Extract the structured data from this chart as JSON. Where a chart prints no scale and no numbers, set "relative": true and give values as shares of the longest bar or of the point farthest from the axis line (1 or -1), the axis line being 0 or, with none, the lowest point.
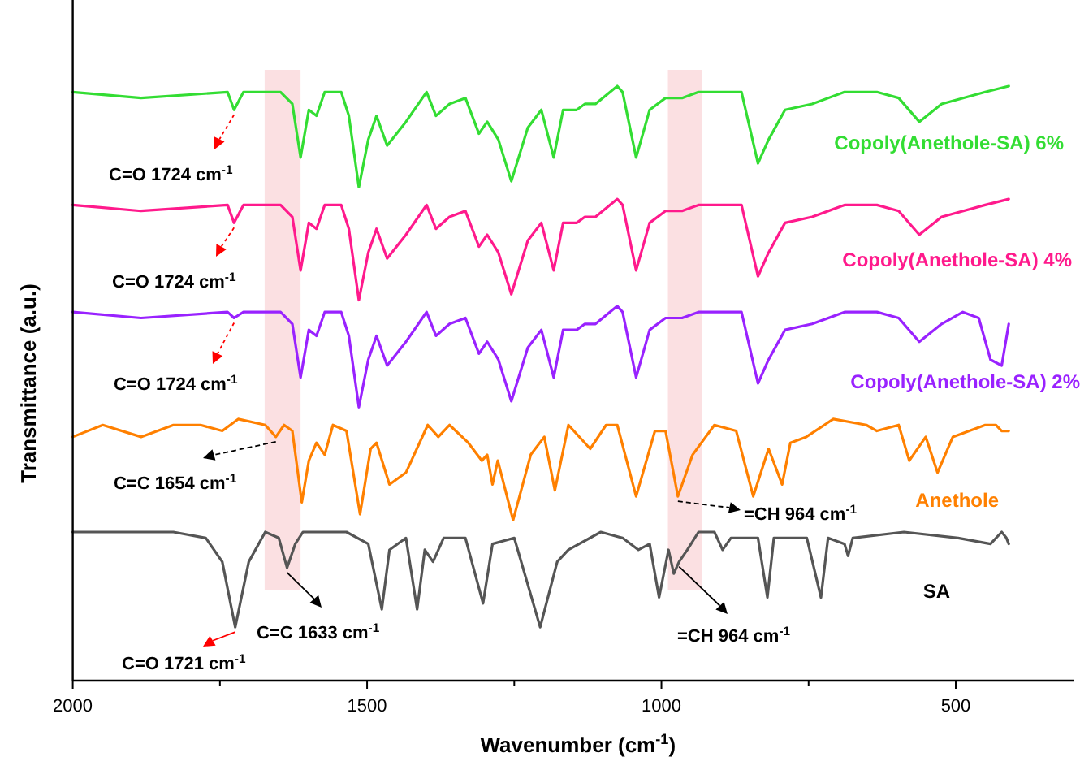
{
  "chart_data": {
    "type": "line",
    "relative": true,
    "xlabel": "Wavenumber (cm$^{-1}$)",
    "ylabel": "Transmittance (a.u.)",
    "xlim": [
      2000,
      300
    ],
    "xticks": [
      2000,
      {
        "value": 1750,
        "label": null
      },
      1500,
      {
        "value": 1250,
        "label": null
      },
      1000,
      {
        "value": 750,
        "label": null
      },
      500
    ],
    "bands": [
      {
        "axis": "x",
        "from": 1674,
        "to": 1613,
        "color": "#fadadd"
      },
      {
        "axis": "x",
        "from": 989,
        "to": 931,
        "color": "#fadadd"
      }
    ],
    "series": [
      {
        "name": "Copoly(Anethole-SA) 6%",
        "color": "#33dd33",
        "x": [
          2000,
          1884,
          1737,
          1726,
          1710,
          1647,
          1627,
          1613,
          1599,
          1586,
          1572,
          1544,
          1531,
          1514,
          1498,
          1484,
          1466,
          1434,
          1399,
          1383,
          1360,
          1333,
          1310,
          1296,
          1277,
          1255,
          1227,
          1204,
          1183,
          1167,
          1144,
          1130,
          1112,
          1075,
          1066,
          1043,
          1020,
          993,
          965,
          937,
          910,
          864,
          836,
          818,
          790,
          744,
          689,
          634,
          597,
          562,
          524,
          450,
          410
        ],
        "values": [
          0.99,
          0.98,
          0.99,
          0.96,
          0.99,
          0.99,
          0.97,
          0.88,
          0.96,
          0.95,
          0.99,
          0.99,
          0.95,
          0.83,
          0.91,
          0.95,
          0.9,
          0.94,
          0.99,
          0.95,
          0.97,
          0.98,
          0.92,
          0.94,
          0.91,
          0.84,
          0.93,
          0.96,
          0.88,
          0.96,
          0.96,
          0.97,
          0.97,
          1.0,
          0.99,
          0.88,
          0.96,
          0.98,
          0.98,
          0.99,
          0.99,
          0.99,
          0.87,
          0.91,
          0.96,
          0.97,
          0.99,
          0.99,
          0.98,
          0.94,
          0.97,
          0.99,
          1.0
        ]
      },
      {
        "name": "Copoly(Anethole-SA) 4%",
        "color": "#ff1a8c",
        "x": [
          2000,
          1884,
          1737,
          1726,
          1710,
          1647,
          1627,
          1613,
          1599,
          1586,
          1572,
          1544,
          1531,
          1514,
          1498,
          1484,
          1466,
          1434,
          1399,
          1383,
          1360,
          1333,
          1310,
          1296,
          1277,
          1255,
          1227,
          1204,
          1183,
          1167,
          1144,
          1130,
          1112,
          1075,
          1066,
          1043,
          1020,
          993,
          965,
          937,
          910,
          864,
          836,
          818,
          790,
          744,
          689,
          634,
          597,
          562,
          524,
          450,
          410
        ],
        "values": [
          0.8,
          0.79,
          0.8,
          0.77,
          0.8,
          0.8,
          0.78,
          0.69,
          0.77,
          0.76,
          0.8,
          0.8,
          0.76,
          0.64,
          0.72,
          0.76,
          0.71,
          0.75,
          0.8,
          0.76,
          0.78,
          0.79,
          0.73,
          0.75,
          0.72,
          0.65,
          0.74,
          0.77,
          0.69,
          0.77,
          0.77,
          0.78,
          0.78,
          0.81,
          0.8,
          0.69,
          0.77,
          0.79,
          0.79,
          0.8,
          0.8,
          0.8,
          0.68,
          0.72,
          0.77,
          0.78,
          0.8,
          0.8,
          0.79,
          0.75,
          0.78,
          0.8,
          0.81
        ]
      },
      {
        "name": "Copoly(Anethole-SA) 2%",
        "color": "#9922ff",
        "x": [
          2000,
          1884,
          1737,
          1726,
          1710,
          1647,
          1627,
          1613,
          1599,
          1586,
          1572,
          1544,
          1531,
          1514,
          1498,
          1484,
          1466,
          1434,
          1399,
          1383,
          1360,
          1333,
          1310,
          1296,
          1277,
          1255,
          1227,
          1204,
          1183,
          1167,
          1144,
          1130,
          1112,
          1075,
          1066,
          1043,
          1020,
          993,
          965,
          937,
          910,
          864,
          836,
          818,
          790,
          744,
          689,
          634,
          597,
          562,
          524,
          488,
          461,
          441,
          422,
          410
        ],
        "values": [
          0.62,
          0.61,
          0.62,
          0.61,
          0.62,
          0.62,
          0.6,
          0.51,
          0.59,
          0.58,
          0.62,
          0.62,
          0.58,
          0.46,
          0.54,
          0.58,
          0.53,
          0.57,
          0.62,
          0.58,
          0.6,
          0.61,
          0.55,
          0.57,
          0.54,
          0.47,
          0.56,
          0.59,
          0.51,
          0.59,
          0.59,
          0.6,
          0.6,
          0.63,
          0.62,
          0.51,
          0.59,
          0.61,
          0.61,
          0.62,
          0.62,
          0.62,
          0.5,
          0.54,
          0.59,
          0.6,
          0.62,
          0.62,
          0.61,
          0.57,
          0.6,
          0.62,
          0.61,
          0.54,
          0.53,
          0.6
        ]
      },
      {
        "name": "Anethole",
        "color": "#ff8000",
        "x": [
          2000,
          1949,
          1884,
          1829,
          1783,
          1746,
          1719,
          1673,
          1655,
          1641,
          1627,
          1611,
          1599,
          1586,
          1572,
          1558,
          1535,
          1512,
          1494,
          1484,
          1462,
          1434,
          1397,
          1379,
          1360,
          1328,
          1305,
          1296,
          1287,
          1278,
          1252,
          1222,
          1199,
          1181,
          1158,
          1121,
          1094,
          1075,
          1043,
          1011,
          993,
          972,
          947,
          910,
          873,
          844,
          818,
          795,
          781,
          754,
          708,
          652,
          634,
          597,
          579,
          551,
          531,
          505,
          450,
          432,
          422,
          410
        ],
        "values": [
          0.41,
          0.43,
          0.41,
          0.43,
          0.43,
          0.42,
          0.44,
          0.43,
          0.41,
          0.43,
          0.42,
          0.3,
          0.37,
          0.4,
          0.38,
          0.43,
          0.42,
          0.28,
          0.39,
          0.4,
          0.33,
          0.35,
          0.43,
          0.41,
          0.43,
          0.4,
          0.37,
          0.38,
          0.33,
          0.37,
          0.27,
          0.38,
          0.41,
          0.32,
          0.43,
          0.39,
          0.43,
          0.43,
          0.31,
          0.42,
          0.42,
          0.31,
          0.38,
          0.43,
          0.42,
          0.31,
          0.39,
          0.33,
          0.4,
          0.41,
          0.44,
          0.43,
          0.42,
          0.43,
          0.37,
          0.41,
          0.35,
          0.41,
          0.43,
          0.43,
          0.42,
          0.42
        ]
      },
      {
        "name": "SA",
        "color": "#555555",
        "x": [
          2000,
          1958,
          1829,
          1774,
          1746,
          1724,
          1701,
          1673,
          1650,
          1636,
          1622,
          1609,
          1535,
          1498,
          1475,
          1462,
          1434,
          1415,
          1402,
          1388,
          1370,
          1333,
          1303,
          1287,
          1250,
          1206,
          1177,
          1158,
          1103,
          1066,
          1039,
          1020,
          1004,
          988,
          979,
          970,
          956,
          937,
          910,
          896,
          882,
          836,
          820,
          809,
          753,
          729,
          717,
          689,
          683,
          675,
          588,
          496,
          441,
          422,
          414,
          410
        ],
        "values": [
          0.25,
          0.25,
          0.25,
          0.24,
          0.2,
          0.09,
          0.2,
          0.25,
          0.24,
          0.19,
          0.23,
          0.25,
          0.25,
          0.23,
          0.12,
          0.22,
          0.24,
          0.12,
          0.22,
          0.2,
          0.24,
          0.24,
          0.13,
          0.23,
          0.24,
          0.09,
          0.2,
          0.22,
          0.25,
          0.24,
          0.22,
          0.23,
          0.14,
          0.22,
          0.18,
          0.2,
          0.22,
          0.25,
          0.25,
          0.22,
          0.24,
          0.24,
          0.14,
          0.24,
          0.24,
          0.14,
          0.24,
          0.23,
          0.21,
          0.24,
          0.25,
          0.24,
          0.23,
          0.25,
          0.24,
          0.23
        ]
      }
    ],
    "annotations": [
      {
        "text": "C=O 1724 cm$^{-1}$",
        "x": 1726,
        "y": 0.96
      },
      {
        "text": "C=O 1724 cm$^{-1}$",
        "x": 1726,
        "y": 0.77
      },
      {
        "text": "C=O 1724 cm$^{-1}$",
        "x": 1726,
        "y": 0.61
      },
      {
        "text": "C=C 1654 cm$^{-1}$",
        "x": 1655,
        "y": 0.41
      },
      {
        "text": "=CH 964 cm$^{-1}$",
        "x": 972,
        "y": 0.31
      },
      {
        "text": "C=C 1633 cm$^{-1}$",
        "x": 1636,
        "y": 0.19
      },
      {
        "text": "C=O 1721 cm$^{-1}$",
        "x": 1724,
        "y": 0.09
      },
      {
        "text": "=CH 964 cm$^{-1}$",
        "x": 970,
        "y": 0.2
      }
    ]
  }
}
